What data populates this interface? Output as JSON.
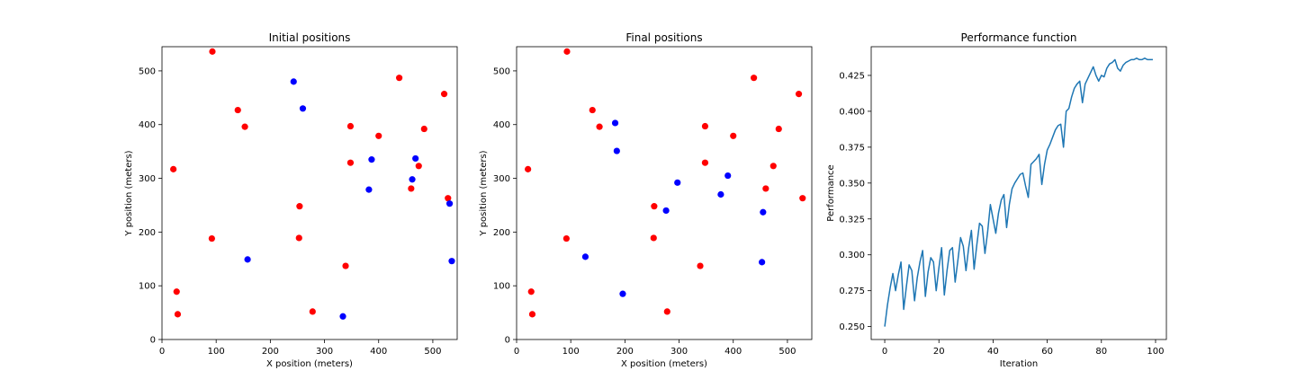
{
  "chart_data": [
    {
      "type": "scatter",
      "title": "Initial positions",
      "xlabel": "X position (meters)",
      "ylabel": "Y position (meters)",
      "xlim": [
        0,
        545
      ],
      "ylim": [
        0,
        545
      ],
      "xticks": [
        0,
        100,
        200,
        300,
        400,
        500
      ],
      "yticks": [
        0,
        100,
        200,
        300,
        400,
        500
      ],
      "grid": false,
      "series": [
        {
          "color": "#ff0000",
          "points": [
            [
              93,
              536
            ],
            [
              438,
              487
            ],
            [
              521,
              457
            ],
            [
              140,
              427
            ],
            [
              153,
              396
            ],
            [
              348,
              397
            ],
            [
              400,
              379
            ],
            [
              484,
              392
            ],
            [
              21,
              317
            ],
            [
              348,
              329
            ],
            [
              474,
              323
            ],
            [
              460,
              281
            ],
            [
              528,
              263
            ],
            [
              254,
              248
            ],
            [
              92,
              188
            ],
            [
              253,
              189
            ],
            [
              339,
              137
            ],
            [
              27,
              89
            ],
            [
              29,
              47
            ],
            [
              278,
              52
            ]
          ]
        },
        {
          "color": "#0000ff",
          "points": [
            [
              243,
              480
            ],
            [
              260,
              430
            ],
            [
              387,
              335
            ],
            [
              468,
              337
            ],
            [
              462,
              298
            ],
            [
              382,
              279
            ],
            [
              531,
              253
            ],
            [
              158,
              149
            ],
            [
              535,
              146
            ],
            [
              334,
              43
            ]
          ]
        }
      ]
    },
    {
      "type": "scatter",
      "title": "Final positions",
      "xlabel": "X position (meters)",
      "ylabel": "Y position (meters)",
      "xlim": [
        0,
        545
      ],
      "ylim": [
        0,
        545
      ],
      "xticks": [
        0,
        100,
        200,
        300,
        400,
        500
      ],
      "yticks": [
        0,
        100,
        200,
        300,
        400,
        500
      ],
      "grid": false,
      "series": [
        {
          "color": "#ff0000",
          "points": [
            [
              93,
              536
            ],
            [
              438,
              487
            ],
            [
              521,
              457
            ],
            [
              140,
              427
            ],
            [
              153,
              396
            ],
            [
              348,
              397
            ],
            [
              400,
              379
            ],
            [
              484,
              392
            ],
            [
              21,
              317
            ],
            [
              348,
              329
            ],
            [
              474,
              323
            ],
            [
              460,
              281
            ],
            [
              528,
              263
            ],
            [
              254,
              248
            ],
            [
              92,
              188
            ],
            [
              253,
              189
            ],
            [
              339,
              137
            ],
            [
              27,
              89
            ],
            [
              29,
              47
            ],
            [
              278,
              52
            ]
          ]
        },
        {
          "color": "#0000ff",
          "points": [
            [
              182,
              403
            ],
            [
              185,
              351
            ],
            [
              297,
              292
            ],
            [
              390,
              305
            ],
            [
              377,
              270
            ],
            [
              276,
              240
            ],
            [
              455,
              237
            ],
            [
              127,
              154
            ],
            [
              453,
              144
            ],
            [
              196,
              85
            ]
          ]
        }
      ]
    },
    {
      "type": "line",
      "title": "Performance function",
      "xlabel": "Iteration",
      "ylabel": "Performance",
      "xlim": [
        -5,
        104
      ],
      "ylim": [
        0.241,
        0.445
      ],
      "xticks": [
        0,
        20,
        40,
        60,
        80,
        100
      ],
      "yticks": [
        0.25,
        0.275,
        0.3,
        0.325,
        0.35,
        0.375,
        0.4,
        0.425
      ],
      "ytick_labels": [
        "0.250",
        "0.275",
        "0.300",
        "0.325",
        "0.350",
        "0.375",
        "0.400",
        "0.425"
      ],
      "grid": false,
      "series": [
        {
          "color": "#1f77b4",
          "x": [
            0,
            1,
            2,
            3,
            4,
            5,
            6,
            7,
            8,
            9,
            10,
            11,
            12,
            13,
            14,
            15,
            16,
            17,
            18,
            19,
            20,
            21,
            22,
            23,
            24,
            25,
            26,
            27,
            28,
            29,
            30,
            31,
            32,
            33,
            34,
            35,
            36,
            37,
            38,
            39,
            40,
            41,
            42,
            43,
            44,
            45,
            46,
            47,
            48,
            49,
            50,
            51,
            52,
            53,
            54,
            55,
            56,
            57,
            58,
            59,
            60,
            61,
            62,
            63,
            64,
            65,
            66,
            67,
            68,
            69,
            70,
            71,
            72,
            73,
            74,
            75,
            76,
            77,
            78,
            79,
            80,
            81,
            82,
            83,
            84,
            85,
            86,
            87,
            88,
            89,
            90,
            91,
            92,
            93,
            94,
            95,
            96,
            97,
            98,
            99
          ],
          "y": [
            0.25,
            0.265,
            0.277,
            0.287,
            0.275,
            0.286,
            0.295,
            0.262,
            0.278,
            0.293,
            0.289,
            0.268,
            0.284,
            0.295,
            0.303,
            0.271,
            0.288,
            0.298,
            0.295,
            0.275,
            0.291,
            0.305,
            0.272,
            0.289,
            0.303,
            0.305,
            0.281,
            0.296,
            0.312,
            0.306,
            0.289,
            0.305,
            0.317,
            0.29,
            0.307,
            0.322,
            0.32,
            0.301,
            0.316,
            0.335,
            0.325,
            0.315,
            0.329,
            0.338,
            0.342,
            0.319,
            0.335,
            0.346,
            0.35,
            0.353,
            0.356,
            0.357,
            0.348,
            0.34,
            0.363,
            0.365,
            0.367,
            0.37,
            0.349,
            0.363,
            0.373,
            0.377,
            0.382,
            0.387,
            0.39,
            0.391,
            0.375,
            0.4,
            0.402,
            0.41,
            0.416,
            0.419,
            0.421,
            0.406,
            0.419,
            0.423,
            0.427,
            0.431,
            0.425,
            0.421,
            0.425,
            0.424,
            0.43,
            0.433,
            0.434,
            0.436,
            0.43,
            0.428,
            0.432,
            0.434,
            0.435,
            0.436,
            0.436,
            0.437,
            0.436,
            0.436,
            0.437,
            0.436,
            0.436,
            0.436
          ]
        }
      ]
    }
  ]
}
